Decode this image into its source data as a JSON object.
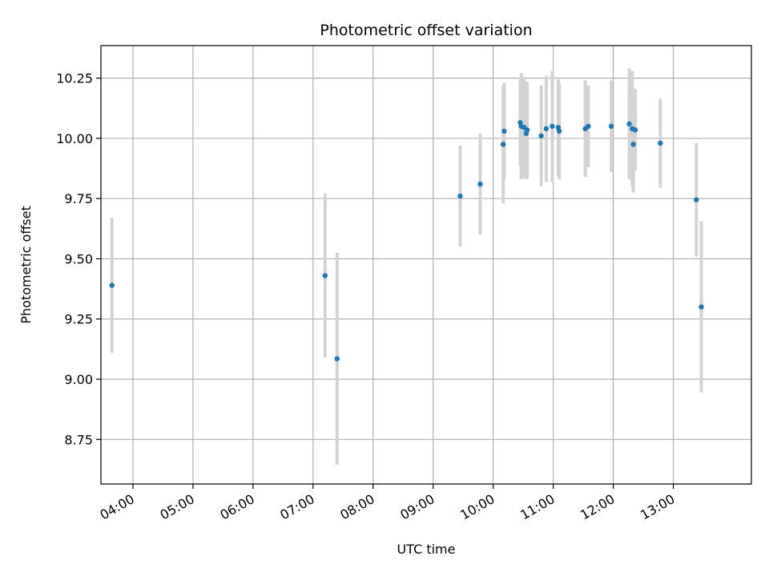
{
  "chart_data": {
    "type": "scatter",
    "title": "Photometric offset variation",
    "xlabel": "UTC time",
    "ylabel": "Photometric offset",
    "x_ticks": [
      "04:00",
      "05:00",
      "06:00",
      "07:00",
      "08:00",
      "09:00",
      "10:00",
      "11:00",
      "12:00",
      "13:00"
    ],
    "y_ticks": [
      "8.75",
      "9.00",
      "9.25",
      "9.50",
      "9.75",
      "10.00",
      "10.25"
    ],
    "xlim": [
      "03:28",
      "14:18"
    ],
    "ylim": [
      8.565,
      10.385
    ],
    "grid": true,
    "colors": {
      "point": "#1f77b4",
      "errorbar": "#d3d3d3",
      "grid": "#b0b0b0"
    },
    "points": [
      {
        "x": "03:39",
        "y": 9.39,
        "err": 0.28
      },
      {
        "x": "07:12",
        "y": 9.43,
        "err": 0.34
      },
      {
        "x": "07:24",
        "y": 9.085,
        "err": 0.44
      },
      {
        "x": "09:27",
        "y": 9.76,
        "err": 0.21
      },
      {
        "x": "09:47",
        "y": 9.81,
        "err": 0.21
      },
      {
        "x": "10:10",
        "y": 9.975,
        "err": 0.245
      },
      {
        "x": "10:11",
        "y": 10.03,
        "err": 0.2
      },
      {
        "x": "10:27",
        "y": 10.065,
        "err": 0.18
      },
      {
        "x": "10:28",
        "y": 10.05,
        "err": 0.22
      },
      {
        "x": "10:31",
        "y": 10.045,
        "err": 0.21
      },
      {
        "x": "10:33",
        "y": 10.02,
        "err": 0.19
      },
      {
        "x": "10:34",
        "y": 10.035,
        "err": 0.2
      },
      {
        "x": "10:48",
        "y": 10.01,
        "err": 0.21
      },
      {
        "x": "10:53",
        "y": 10.04,
        "err": 0.22
      },
      {
        "x": "10:59",
        "y": 10.05,
        "err": 0.23
      },
      {
        "x": "11:05",
        "y": 10.045,
        "err": 0.2
      },
      {
        "x": "11:06",
        "y": 10.03,
        "err": 0.2
      },
      {
        "x": "11:32",
        "y": 10.04,
        "err": 0.2
      },
      {
        "x": "11:35",
        "y": 10.05,
        "err": 0.17
      },
      {
        "x": "11:58",
        "y": 10.05,
        "err": 0.19
      },
      {
        "x": "12:16",
        "y": 10.06,
        "err": 0.23
      },
      {
        "x": "12:19",
        "y": 10.04,
        "err": 0.24
      },
      {
        "x": "12:20",
        "y": 9.975,
        "err": 0.2
      },
      {
        "x": "12:22",
        "y": 10.035,
        "err": 0.17
      },
      {
        "x": "12:47",
        "y": 9.98,
        "err": 0.185
      },
      {
        "x": "13:23",
        "y": 9.745,
        "err": 0.235
      },
      {
        "x": "13:28",
        "y": 9.3,
        "err": 0.355
      }
    ]
  }
}
